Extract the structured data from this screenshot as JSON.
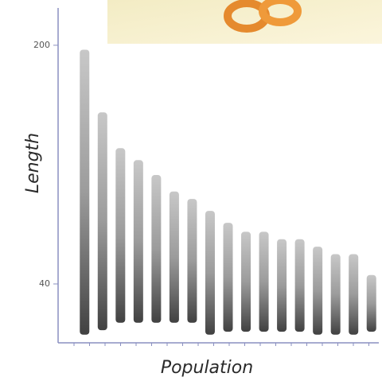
{
  "chart_data": {
    "type": "strip",
    "x_label": "Population",
    "y_label": "Length",
    "categories": [
      null,
      null,
      null,
      null,
      null,
      null,
      null,
      null,
      null,
      null,
      null,
      null,
      null,
      null,
      null,
      null,
      null
    ],
    "low": [
      6,
      9,
      14,
      14,
      14,
      14,
      14,
      6,
      8,
      8,
      8,
      8,
      8,
      6,
      6,
      6,
      8
    ],
    "high": [
      197,
      155,
      131,
      123,
      113,
      102,
      97,
      89,
      81,
      75,
      75,
      70,
      70,
      65,
      60,
      60,
      46
    ],
    "color": "#222222",
    "ylim": [
      0,
      225
    ],
    "yticks": [
      40,
      200
    ]
  }
}
